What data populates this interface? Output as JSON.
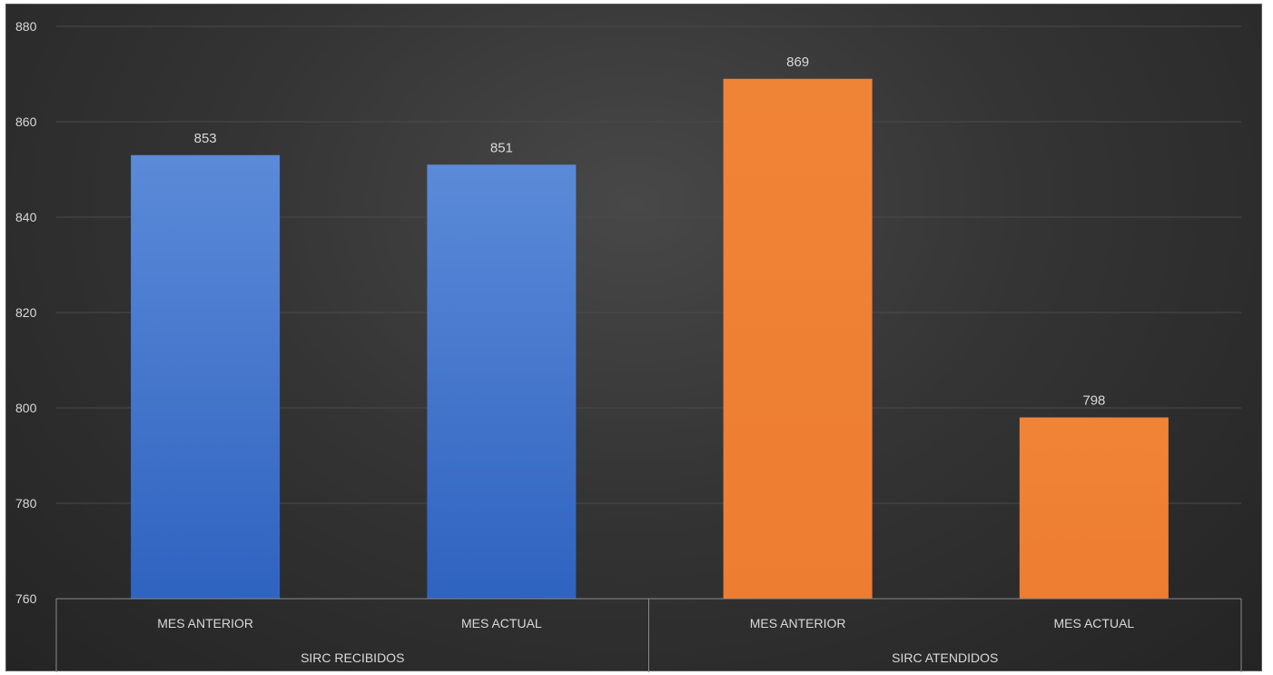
{
  "chart_data": {
    "type": "bar",
    "title": "",
    "xlabel": "",
    "ylabel": "",
    "ylim": [
      760,
      880
    ],
    "yticks": [
      760,
      780,
      800,
      820,
      840,
      860,
      880
    ],
    "grid": true,
    "legend": "none",
    "groups": [
      {
        "label": "SIRC RECIBIDOS",
        "color": "#4472c4",
        "categories": [
          "MES ANTERIOR",
          "MES ACTUAL"
        ],
        "values": [
          853,
          851
        ]
      },
      {
        "label": "SIRC ATENDIDOS",
        "color": "#ed7d31",
        "categories": [
          "MES ANTERIOR",
          "MES ACTUAL"
        ],
        "values": [
          869,
          798
        ]
      }
    ]
  }
}
